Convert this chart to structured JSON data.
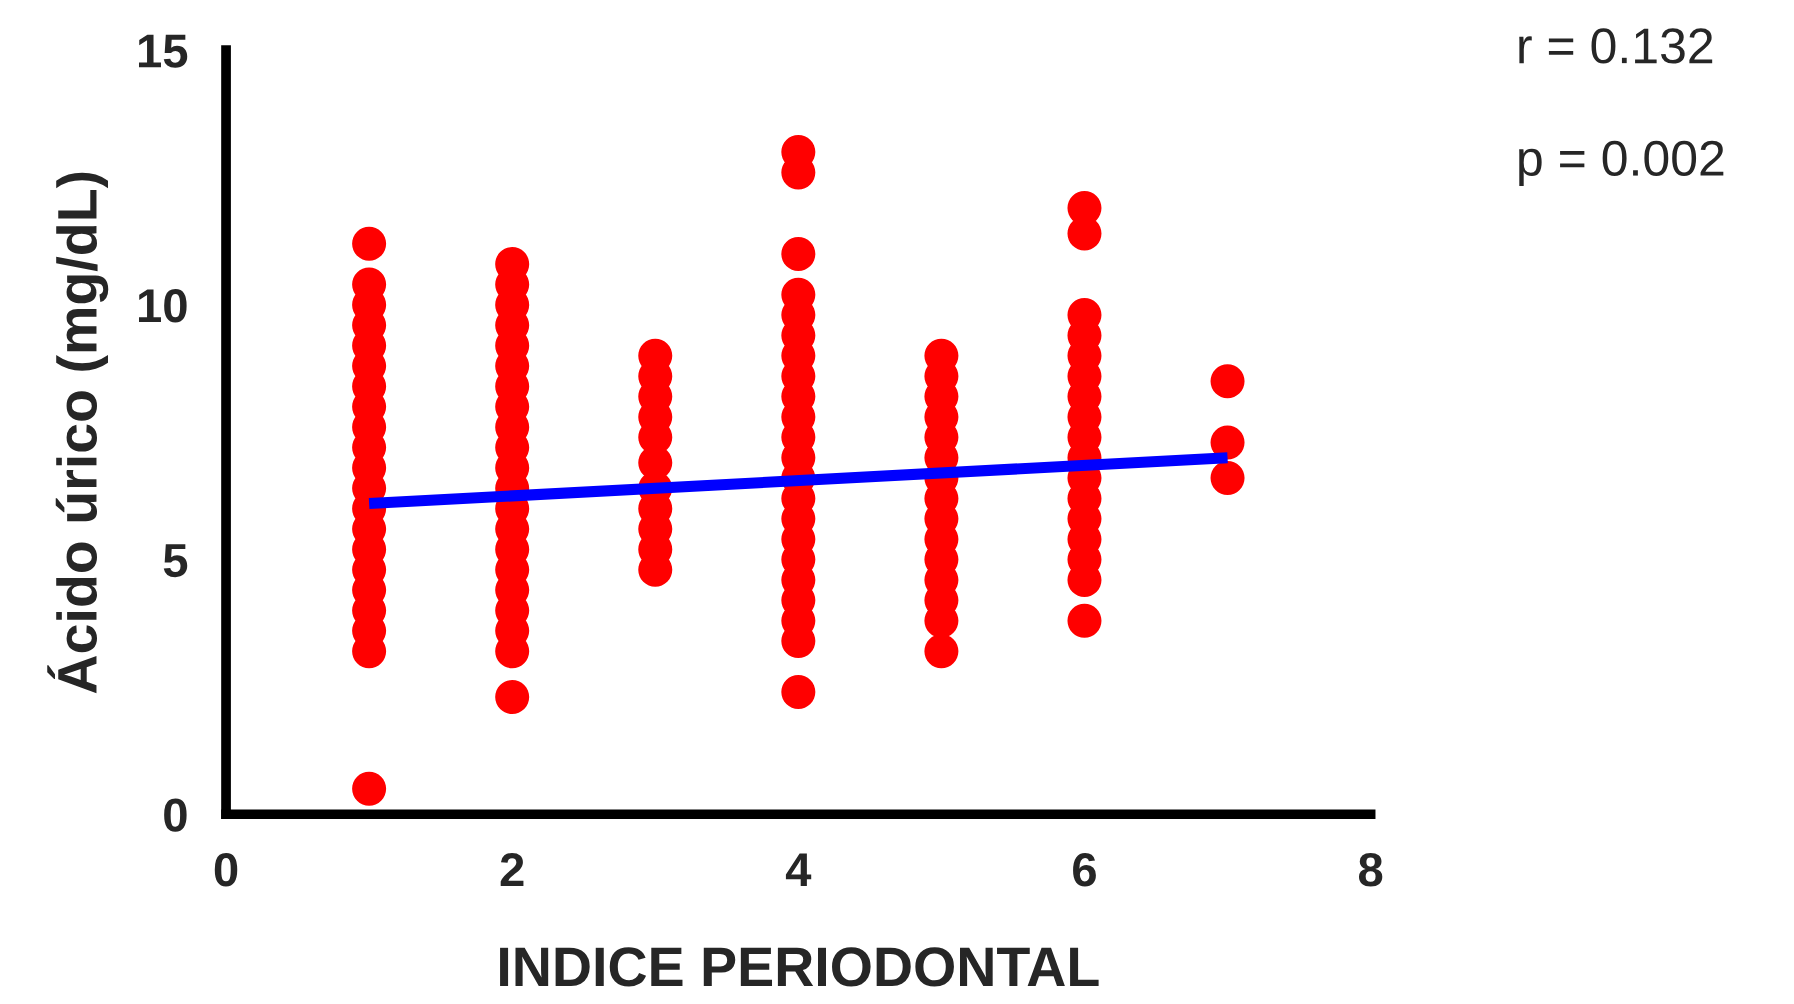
{
  "chart_data": {
    "type": "scatter",
    "xlabel": "INDICE PERIODONTAL",
    "ylabel": "Ácido úrico (mg/dL)",
    "annotations": [
      "r = 0.132",
      "p = 0.002"
    ],
    "xlim": [
      0,
      8
    ],
    "xticks": [
      0,
      2,
      4,
      6,
      8
    ],
    "ylim": [
      0,
      15
    ],
    "yticks": [
      0,
      5,
      10,
      15
    ],
    "grid": false,
    "marker": "circle",
    "series": [
      {
        "color": "#ff0000",
        "x": [
          1,
          1,
          1,
          1,
          1,
          1,
          1,
          1,
          1,
          1,
          1,
          1,
          1,
          1,
          1,
          1,
          1,
          1,
          1,
          1,
          1,
          2,
          2,
          2,
          2,
          2,
          2,
          2,
          2,
          2,
          2,
          2,
          2,
          2,
          2,
          2,
          2,
          2,
          2,
          2,
          2,
          2,
          3,
          3,
          3,
          3,
          3,
          3,
          3,
          3,
          3,
          3,
          3,
          4,
          4,
          4,
          4,
          4,
          4,
          4,
          4,
          4,
          4,
          4,
          4,
          4,
          4,
          4,
          4,
          4,
          4,
          4,
          4,
          4,
          4,
          5,
          5,
          5,
          5,
          5,
          5,
          5,
          5,
          5,
          5,
          5,
          5,
          5,
          5,
          5,
          6,
          6,
          6,
          6,
          6,
          6,
          6,
          6,
          6,
          6,
          6,
          6,
          6,
          6,
          6,
          6,
          6,
          7,
          7,
          7
        ],
        "values": [
          11.2,
          10.4,
          10.0,
          9.6,
          9.2,
          8.8,
          8.4,
          8.0,
          7.6,
          7.2,
          6.8,
          6.4,
          6.0,
          5.6,
          5.2,
          4.8,
          4.4,
          4.0,
          3.6,
          3.2,
          0.5,
          10.8,
          10.4,
          10.0,
          9.6,
          9.2,
          8.8,
          8.4,
          8.0,
          7.6,
          7.2,
          6.8,
          6.4,
          6.0,
          5.6,
          5.2,
          4.8,
          4.4,
          4.0,
          3.6,
          3.2,
          2.3,
          9.0,
          8.6,
          8.2,
          7.8,
          7.4,
          6.9,
          6.4,
          6.0,
          5.6,
          5.2,
          4.8,
          13.0,
          12.6,
          11.0,
          10.2,
          9.8,
          9.4,
          9.0,
          8.6,
          8.2,
          7.8,
          7.4,
          7.0,
          6.6,
          6.2,
          5.8,
          5.4,
          5.0,
          4.6,
          4.2,
          3.8,
          3.4,
          2.4,
          9.0,
          8.6,
          8.2,
          7.8,
          7.4,
          7.0,
          6.6,
          6.2,
          5.8,
          5.4,
          5.0,
          4.6,
          4.2,
          3.8,
          3.2,
          11.9,
          11.4,
          9.8,
          9.4,
          9.0,
          8.6,
          8.2,
          7.8,
          7.4,
          7.0,
          6.6,
          6.2,
          5.8,
          5.4,
          5.0,
          4.6,
          3.8,
          8.5,
          7.3,
          6.6
        ]
      },
      {
        "type": "line",
        "marker": "none",
        "color": "#0000ff",
        "x": [
          1,
          7
        ],
        "values": [
          6.1,
          7.0
        ]
      }
    ]
  }
}
